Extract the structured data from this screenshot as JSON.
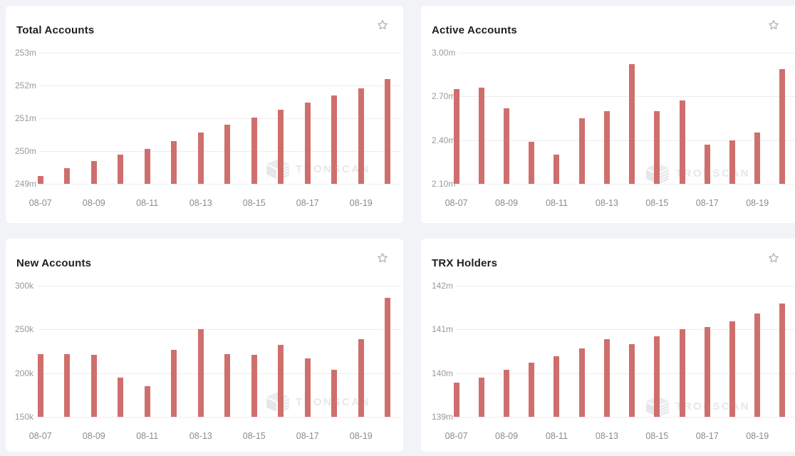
{
  "page": {
    "background_color": "#f1f3f7",
    "card_background": "#ffffff",
    "grid_color": "#ededed",
    "axis_label_color": "#999999",
    "title_color": "#1f1f1f"
  },
  "watermark": {
    "text": "TRONSCAN",
    "color": "#e7e7ea",
    "icon": "tronscan-cube-icon"
  },
  "chart_data": [
    {
      "type": "bar",
      "title": "Total Accounts",
      "bar_color": "#cf6f6d",
      "favorite_icon": "star-outline",
      "categories": [
        "08-07",
        "08-08",
        "08-09",
        "08-10",
        "08-11",
        "08-12",
        "08-13",
        "08-14",
        "08-15",
        "08-16",
        "08-17",
        "08-18",
        "08-19",
        "08-20"
      ],
      "x_labels": [
        "08-07",
        "",
        "08-09",
        "",
        "08-11",
        "",
        "08-13",
        "",
        "08-15",
        "",
        "08-17",
        "",
        "08-19",
        ""
      ],
      "ylim": [
        249,
        253
      ],
      "yticks": [
        {
          "label": "249m",
          "value": 249
        },
        {
          "label": "250m",
          "value": 250
        },
        {
          "label": "251m",
          "value": 251
        },
        {
          "label": "252m",
          "value": 252
        },
        {
          "label": "253m",
          "value": 253
        }
      ],
      "unit": "million accounts",
      "values": [
        249.25,
        249.47,
        249.7,
        249.89,
        250.07,
        250.3,
        250.56,
        250.8,
        251.03,
        251.26,
        251.47,
        251.69,
        251.92,
        252.2
      ]
    },
    {
      "type": "bar",
      "title": "Active Accounts",
      "bar_color": "#cf6f6d",
      "favorite_icon": "star-outline",
      "categories": [
        "08-07",
        "08-08",
        "08-09",
        "08-10",
        "08-11",
        "08-12",
        "08-13",
        "08-14",
        "08-15",
        "08-16",
        "08-17",
        "08-18",
        "08-19",
        "08-20"
      ],
      "x_labels": [
        "08-07",
        "",
        "08-09",
        "",
        "08-11",
        "",
        "08-13",
        "",
        "08-15",
        "",
        "08-17",
        "",
        "08-19",
        ""
      ],
      "ylim": [
        2.1,
        3.0
      ],
      "yticks": [
        {
          "label": "2.10m",
          "value": 2.1
        },
        {
          "label": "2.40m",
          "value": 2.4
        },
        {
          "label": "2.70m",
          "value": 2.7
        },
        {
          "label": "3.00m",
          "value": 3.0
        }
      ],
      "unit": "million accounts",
      "values": [
        2.75,
        2.76,
        2.62,
        2.39,
        2.3,
        2.55,
        2.6,
        2.92,
        2.6,
        2.67,
        2.37,
        2.4,
        2.45,
        2.89
      ]
    },
    {
      "type": "bar",
      "title": "New Accounts",
      "bar_color": "#cf6f6d",
      "favorite_icon": "star-outline",
      "categories": [
        "08-07",
        "08-08",
        "08-09",
        "08-10",
        "08-11",
        "08-12",
        "08-13",
        "08-14",
        "08-15",
        "08-16",
        "08-17",
        "08-18",
        "08-19",
        "08-20"
      ],
      "x_labels": [
        "08-07",
        "",
        "08-09",
        "",
        "08-11",
        "",
        "08-13",
        "",
        "08-15",
        "",
        "08-17",
        "",
        "08-19",
        ""
      ],
      "ylim": [
        150,
        300
      ],
      "yticks": [
        {
          "label": "150k",
          "value": 150
        },
        {
          "label": "200k",
          "value": 200
        },
        {
          "label": "250k",
          "value": 250
        },
        {
          "label": "300k",
          "value": 300
        }
      ],
      "unit": "thousand accounts",
      "values": [
        222,
        222,
        221,
        195,
        185,
        227,
        250,
        222,
        221,
        232,
        217,
        204,
        239,
        286
      ]
    },
    {
      "type": "bar",
      "title": "TRX Holders",
      "bar_color": "#cf6f6d",
      "favorite_icon": "star-outline",
      "categories": [
        "08-07",
        "08-08",
        "08-09",
        "08-10",
        "08-11",
        "08-12",
        "08-13",
        "08-14",
        "08-15",
        "08-16",
        "08-17",
        "08-18",
        "08-19",
        "08-20"
      ],
      "x_labels": [
        "08-07",
        "",
        "08-09",
        "",
        "08-11",
        "",
        "08-13",
        "",
        "08-15",
        "",
        "08-17",
        "",
        "08-19",
        ""
      ],
      "ylim": [
        139,
        142
      ],
      "yticks": [
        {
          "label": "139m",
          "value": 139
        },
        {
          "label": "140m",
          "value": 140
        },
        {
          "label": "141m",
          "value": 141
        },
        {
          "label": "142m",
          "value": 142
        }
      ],
      "unit": "million holders",
      "values": [
        139.78,
        139.9,
        140.08,
        140.24,
        140.38,
        140.57,
        140.78,
        140.67,
        140.84,
        141.0,
        141.06,
        141.19,
        141.37,
        141.6
      ]
    }
  ]
}
